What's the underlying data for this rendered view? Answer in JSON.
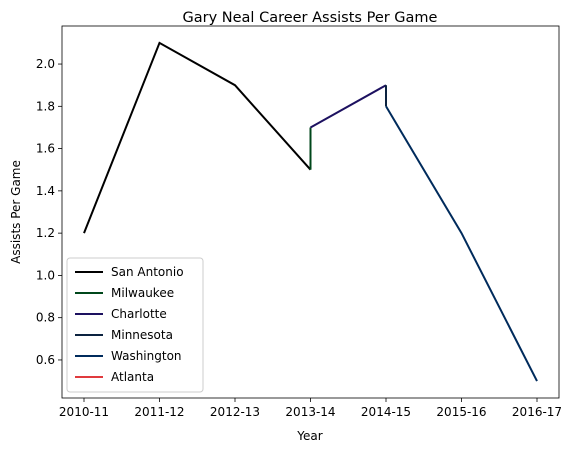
{
  "chart_data": {
    "type": "line",
    "title": "Gary Neal Career Assists Per Game",
    "xlabel": "Year",
    "ylabel": "Assists Per Game",
    "categories": [
      "2010-11",
      "2011-12",
      "2012-13",
      "2013-14",
      "2014-15",
      "2015-16",
      "2016-17"
    ],
    "yticks": [
      "0.6",
      "0.8",
      "1.0",
      "1.2",
      "1.4",
      "1.6",
      "1.8",
      "2.0"
    ],
    "ylim": [
      0.42,
      2.18
    ],
    "grid": false,
    "legend_position": "lower-left",
    "series": [
      {
        "name": "San Antonio",
        "color": "#000000",
        "points": [
          [
            "2010-11",
            1.2
          ],
          [
            "2011-12",
            2.1
          ],
          [
            "2012-13",
            1.9
          ],
          [
            "2013-14",
            1.5
          ]
        ]
      },
      {
        "name": "Milwaukee",
        "color": "#00471b",
        "points": [
          [
            "2013-14",
            1.5
          ],
          [
            "2013-14",
            1.7
          ]
        ]
      },
      {
        "name": "Charlotte",
        "color": "#1d1160",
        "points": [
          [
            "2013-14",
            1.7
          ],
          [
            "2014-15",
            1.9
          ]
        ]
      },
      {
        "name": "Minnesota",
        "color": "#0c2340",
        "points": [
          [
            "2014-15",
            1.9
          ],
          [
            "2014-15",
            1.8
          ]
        ]
      },
      {
        "name": "Washington",
        "color": "#002b5c",
        "points": [
          [
            "2014-15",
            1.8
          ],
          [
            "2015-16",
            1.2
          ],
          [
            "2016-17",
            0.5
          ]
        ]
      },
      {
        "name": "Atlanta",
        "color": "#e03a3e",
        "points": []
      }
    ]
  }
}
